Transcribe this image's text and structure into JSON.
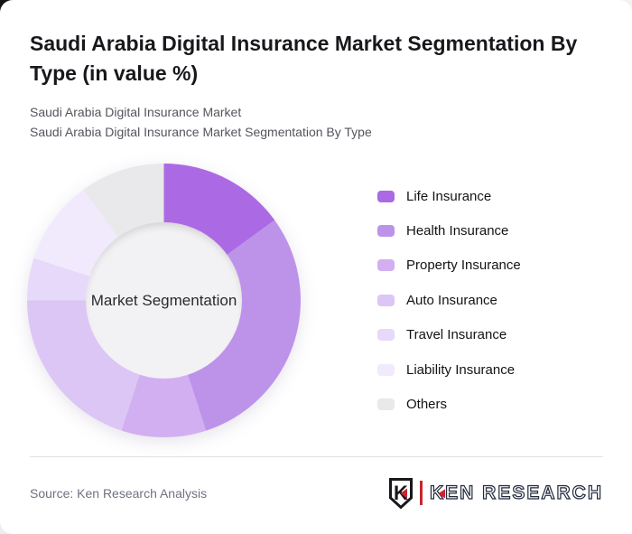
{
  "card": {
    "title": "Saudi Arabia Digital Insurance Market Segmentation By Type (in value %)",
    "subtitle_line1": "Saudi Arabia Digital Insurance Market",
    "subtitle_line2": "Saudi Arabia Digital Insurance Market Segmentation By Type"
  },
  "chart_data": {
    "type": "pie",
    "subtype": "donut",
    "title": "Saudi Arabia Digital Insurance Market Segmentation By Type (in value %)",
    "center_label": "Market Segmentation",
    "categories": [
      "Life Insurance",
      "Health Insurance",
      "Property Insurance",
      "Auto Insurance",
      "Travel Insurance",
      "Liability Insurance",
      "Others"
    ],
    "values_pct": [
      15,
      30,
      10,
      20,
      5,
      10,
      10
    ],
    "colors": [
      "#ab6ae3",
      "#bd93ea",
      "#d2aff0",
      "#dcc6f5",
      "#e7d9f9",
      "#f1eafc",
      "#e9e8ea"
    ],
    "start_angle_deg": 0,
    "direction": "clockwise",
    "legend_position": "right",
    "data_labels_shown": false,
    "hole_color": "#f2f1f3"
  },
  "footer": {
    "source": "Source: Ken Research Analysis",
    "logo_text": "KEN RESEARCH",
    "logo_mark_letter": "K",
    "logo_accent_color": "#c9252c"
  }
}
